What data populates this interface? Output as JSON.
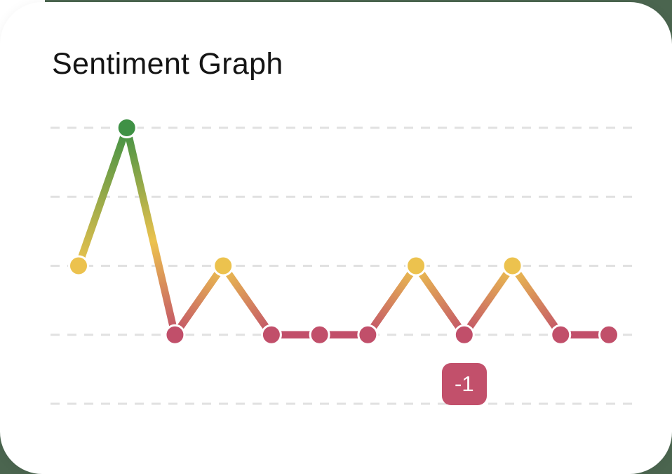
{
  "page": {
    "background_color": "#4b654f",
    "card_color": "#ffffff"
  },
  "chart_data": {
    "type": "line",
    "title": "Sentiment Graph",
    "values": [
      0,
      2,
      -1,
      0,
      -1,
      -1,
      -1,
      0,
      -1,
      0,
      -1,
      -1
    ],
    "ylim": [
      -2,
      2
    ],
    "gridline_values": [
      2,
      1,
      0,
      -1,
      -2
    ],
    "grid": "horizontal dashed, no axis labels, no legend",
    "gridline_color": "#e1e1e1",
    "colors": {
      "positive": "#3f9145",
      "neutral": "#ecc24e",
      "negative": "#c14f6a"
    },
    "point_border_color": "#ffffff",
    "tooltip": {
      "point_index": 8,
      "label": "-1",
      "color": "#c2506b"
    }
  }
}
